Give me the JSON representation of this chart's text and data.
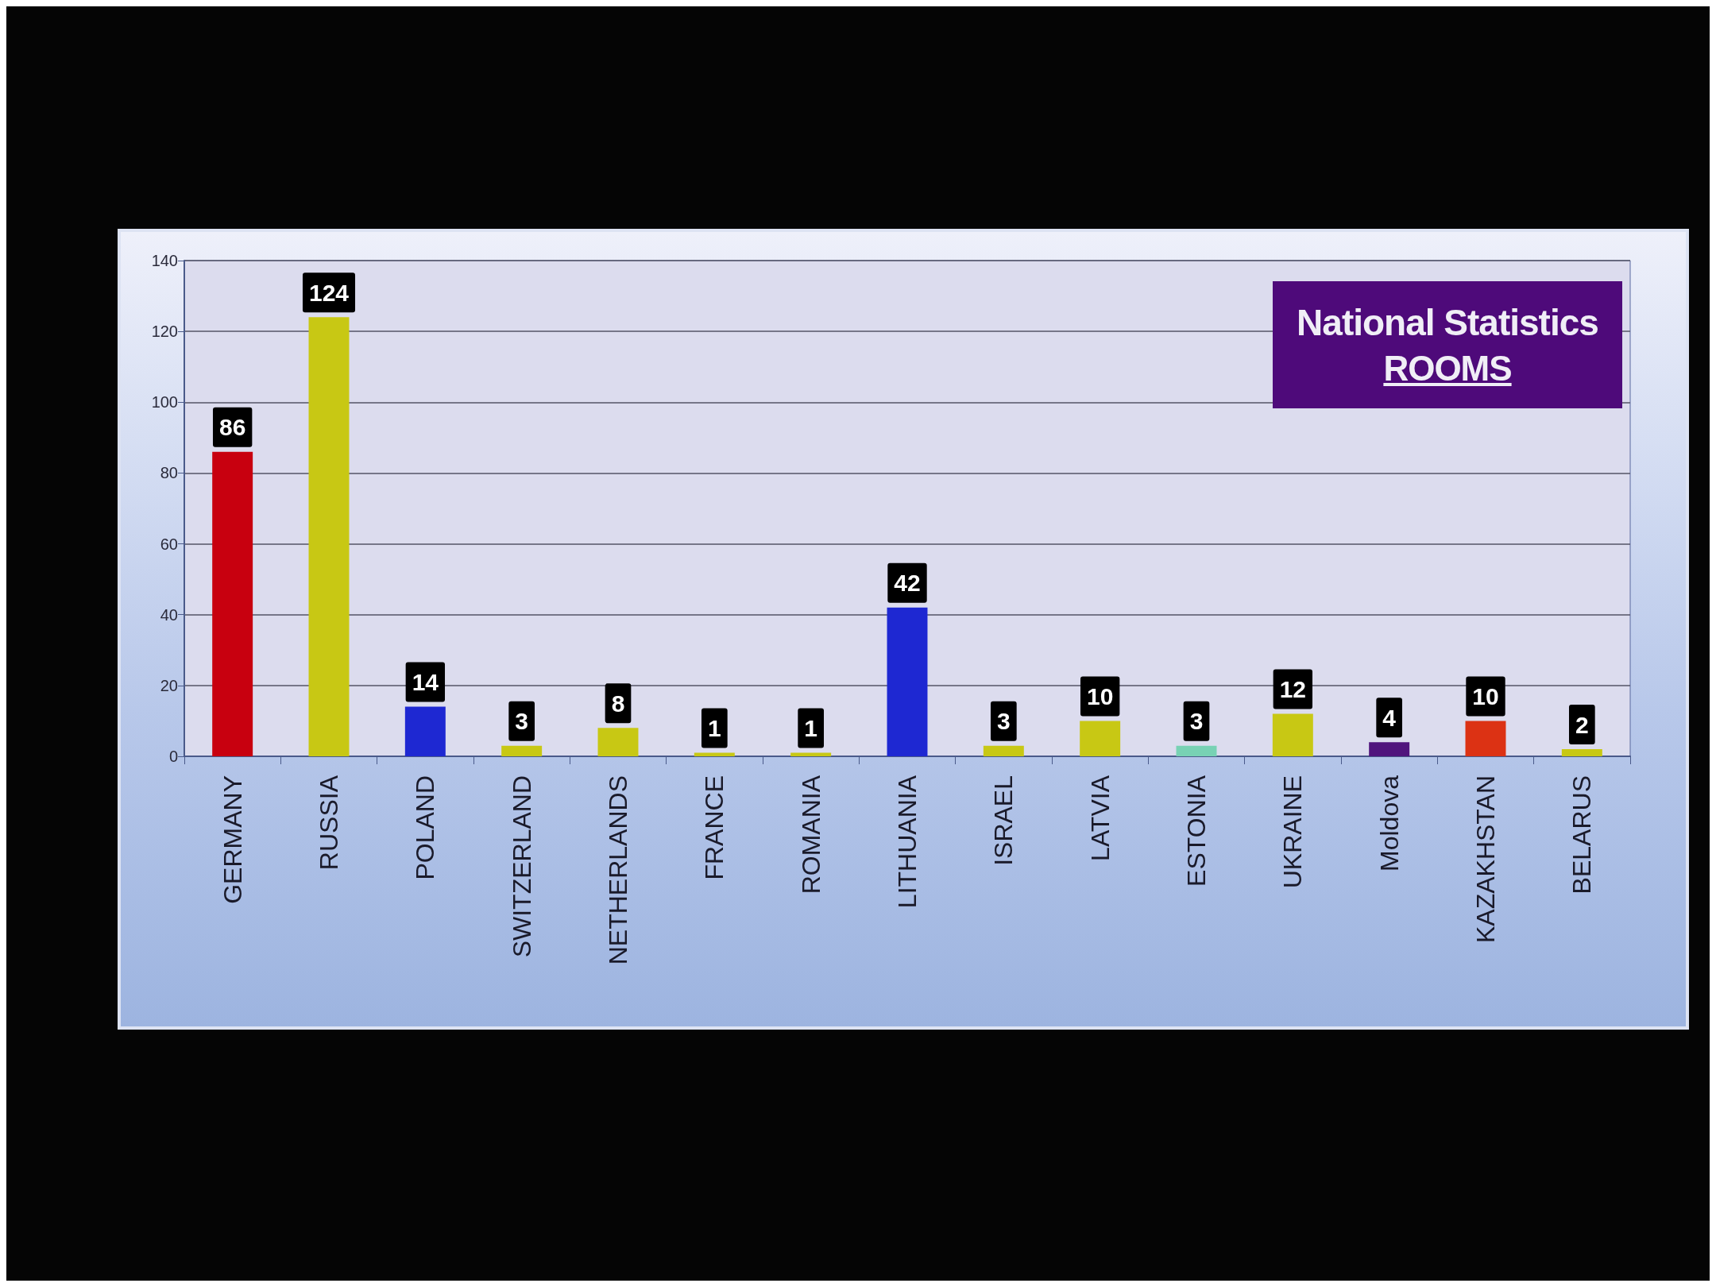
{
  "chart_data": {
    "type": "bar",
    "title": "National Statistics",
    "subtitle": "ROOMS",
    "categories": [
      "GERMANY",
      "RUSSIA",
      "POLAND",
      "SWITZERLAND",
      "NETHERLANDS",
      "FRANCE",
      "ROMANIA",
      "LITHUANIA",
      "ISRAEL",
      "LATVIA",
      "ESTONIA",
      "UKRAINE",
      "Moldova",
      "KAZAKHSTAN",
      "BELARUS"
    ],
    "values": [
      86,
      124,
      14,
      3,
      8,
      1,
      1,
      42,
      3,
      10,
      3,
      12,
      4,
      10,
      2
    ],
    "colors": [
      "#c8000f",
      "#c8c814",
      "#1e28d2",
      "#c8c814",
      "#c8c814",
      "#c8c814",
      "#c8c814",
      "#1e28d2",
      "#c8c814",
      "#c8c814",
      "#78d2b4",
      "#c8c814",
      "#50147d",
      "#dc3214",
      "#c8c814"
    ],
    "ylim": [
      0,
      140
    ],
    "yticks": [
      0,
      20,
      40,
      60,
      80,
      100,
      120,
      140
    ],
    "grid": "y",
    "data_labels": true
  }
}
